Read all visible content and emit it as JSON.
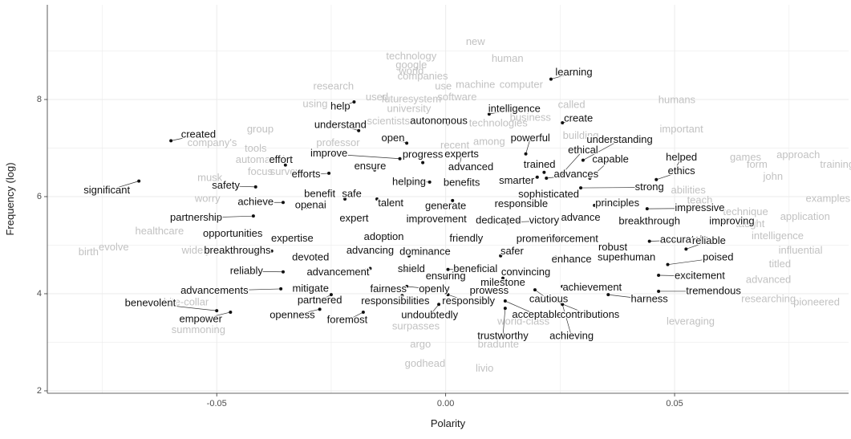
{
  "chart_data": {
    "type": "scatter",
    "xlabel": "Polarity",
    "ylabel": "Frequency (log)",
    "xlim": [
      -0.087,
      0.088
    ],
    "ylim": [
      1.95,
      9.95
    ],
    "x_ticks": [
      -0.05,
      0.0,
      0.05
    ],
    "x_tick_labels": [
      "-0.05",
      "0.00",
      "0.05"
    ],
    "y_ticks": [
      2,
      4,
      6,
      8
    ],
    "y_tick_labels": [
      "2",
      "4",
      "6",
      "8"
    ],
    "grid": true,
    "background": "#ffffff",
    "grid_color": "#ebebeb",
    "label_color": "#111111",
    "faded_label_color": "#c2c2c2",
    "point_color": "#111111",
    "highlighted_words": [
      {
        "word": "learning",
        "x": 0.023,
        "y": 8.42,
        "lx": 0.028,
        "ly": 8.55
      },
      {
        "word": "help",
        "x": -0.02,
        "y": 7.95,
        "lx": -0.023,
        "ly": 7.85
      },
      {
        "word": "intelligence",
        "x": 0.0095,
        "y": 7.7,
        "lx": 0.015,
        "ly": 7.8
      },
      {
        "word": "autonomous",
        "x": 0.0005,
        "y": 7.5,
        "lx": -0.0015,
        "ly": 7.55
      },
      {
        "word": "create",
        "x": 0.0255,
        "y": 7.52,
        "lx": 0.029,
        "ly": 7.6
      },
      {
        "word": "understand",
        "x": -0.019,
        "y": 7.36,
        "lx": -0.023,
        "ly": 7.47
      },
      {
        "word": "created",
        "x": -0.06,
        "y": 7.15,
        "lx": -0.054,
        "ly": 7.27
      },
      {
        "word": "open",
        "x": -0.0085,
        "y": 7.1,
        "lx": -0.0115,
        "ly": 7.2
      },
      {
        "word": "powerful",
        "x": 0.0175,
        "y": 6.88,
        "lx": 0.0185,
        "ly": 7.2
      },
      {
        "word": "understanding",
        "x": 0.03,
        "y": 6.75,
        "lx": 0.038,
        "ly": 7.16
      },
      {
        "word": "improve",
        "x": -0.01,
        "y": 6.78,
        "lx": -0.0255,
        "ly": 6.88
      },
      {
        "word": "progress",
        "x": -0.005,
        "y": 6.7,
        "lx": -0.005,
        "ly": 6.86
      },
      {
        "word": "experts",
        "x": 0.003,
        "y": 6.62,
        "lx": 0.0035,
        "ly": 6.87
      },
      {
        "word": "ethical",
        "x": 0.0255,
        "y": 6.48,
        "lx": 0.03,
        "ly": 6.95
      },
      {
        "word": "helped",
        "x": 0.05,
        "y": 6.55,
        "lx": 0.0515,
        "ly": 6.8
      },
      {
        "word": "effort",
        "x": -0.035,
        "y": 6.65,
        "lx": -0.036,
        "ly": 6.75
      },
      {
        "word": "capable",
        "x": 0.0315,
        "y": 6.38,
        "lx": 0.036,
        "ly": 6.76
      },
      {
        "word": "advanced",
        "x": 0.005,
        "y": 6.6,
        "lx": 0.0055,
        "ly": 6.6
      },
      {
        "word": "trained",
        "x": 0.0215,
        "y": 6.5,
        "lx": 0.0205,
        "ly": 6.65
      },
      {
        "word": "ensure",
        "x": -0.0155,
        "y": 6.55,
        "lx": -0.0165,
        "ly": 6.62
      },
      {
        "word": "efforts",
        "x": -0.0255,
        "y": 6.48,
        "lx": -0.0305,
        "ly": 6.45
      },
      {
        "word": "advances",
        "x": 0.022,
        "y": 6.38,
        "lx": 0.0285,
        "ly": 6.45
      },
      {
        "word": "ethics",
        "x": 0.046,
        "y": 6.35,
        "lx": 0.0515,
        "ly": 6.52
      },
      {
        "word": "helping",
        "x": -0.0035,
        "y": 6.3,
        "lx": -0.008,
        "ly": 6.3
      },
      {
        "word": "benefits",
        "x": 0.0045,
        "y": 6.3,
        "lx": 0.0035,
        "ly": 6.28
      },
      {
        "word": "smarter",
        "x": 0.02,
        "y": 6.4,
        "lx": 0.0155,
        "ly": 6.32
      },
      {
        "word": "safety",
        "x": -0.0415,
        "y": 6.2,
        "lx": -0.048,
        "ly": 6.22
      },
      {
        "word": "significant",
        "x": -0.067,
        "y": 6.32,
        "lx": -0.074,
        "ly": 6.12
      },
      {
        "word": "strong",
        "x": 0.0295,
        "y": 6.18,
        "lx": 0.0445,
        "ly": 6.19
      },
      {
        "word": "benefit",
        "x": -0.0255,
        "y": 6.05,
        "lx": -0.0275,
        "ly": 6.05
      },
      {
        "word": "safe",
        "x": -0.022,
        "y": 5.95,
        "lx": -0.0205,
        "ly": 6.05
      },
      {
        "word": "sophisticated",
        "x": 0.0235,
        "y": 6.05,
        "lx": 0.0225,
        "ly": 6.04
      },
      {
        "word": "achieve",
        "x": -0.0355,
        "y": 5.88,
        "lx": -0.0415,
        "ly": 5.88
      },
      {
        "word": "openai",
        "x": -0.0305,
        "y": 5.78,
        "lx": -0.0295,
        "ly": 5.82
      },
      {
        "word": "talent",
        "x": -0.015,
        "y": 5.95,
        "lx": -0.012,
        "ly": 5.86
      },
      {
        "word": "generate",
        "x": 0.0015,
        "y": 5.92,
        "lx": 0.0,
        "ly": 5.8
      },
      {
        "word": "responsible",
        "x": 0.011,
        "y": 5.88,
        "lx": 0.0165,
        "ly": 5.84
      },
      {
        "word": "principles",
        "x": 0.0325,
        "y": 5.82,
        "lx": 0.0375,
        "ly": 5.86
      },
      {
        "word": "impressive",
        "x": 0.044,
        "y": 5.75,
        "lx": 0.0555,
        "ly": 5.76
      },
      {
        "word": "partnership",
        "x": -0.042,
        "y": 5.6,
        "lx": -0.0545,
        "ly": 5.56
      },
      {
        "word": "expert",
        "x": -0.022,
        "y": 5.55,
        "lx": -0.02,
        "ly": 5.54
      },
      {
        "word": "improvement",
        "x": 0.002,
        "y": 5.5,
        "lx": -0.002,
        "ly": 5.53
      },
      {
        "word": "dedicated",
        "x": 0.0135,
        "y": 5.45,
        "lx": 0.0115,
        "ly": 5.5
      },
      {
        "word": "victory",
        "x": 0.016,
        "y": 5.48,
        "lx": 0.0215,
        "ly": 5.5
      },
      {
        "word": "advance",
        "x": 0.028,
        "y": 5.55,
        "lx": 0.0295,
        "ly": 5.56
      },
      {
        "word": "breakthrough",
        "x": 0.0425,
        "y": 5.45,
        "lx": 0.0445,
        "ly": 5.49
      },
      {
        "word": "improving",
        "x": 0.058,
        "y": 5.5,
        "lx": 0.0625,
        "ly": 5.49
      },
      {
        "word": "opportunities",
        "x": -0.042,
        "y": 5.2,
        "lx": -0.0465,
        "ly": 5.23
      },
      {
        "word": "expertise",
        "x": -0.0295,
        "y": 5.15,
        "lx": -0.0335,
        "ly": 5.13
      },
      {
        "word": "adoption",
        "x": -0.0135,
        "y": 5.2,
        "lx": -0.0135,
        "ly": 5.16
      },
      {
        "word": "friendly",
        "x": 0.0035,
        "y": 5.12,
        "lx": 0.0045,
        "ly": 5.13
      },
      {
        "word": "promotion",
        "x": 0.0165,
        "y": 5.15,
        "lx": 0.0205,
        "ly": 5.12
      },
      {
        "word": "enforcement",
        "x": 0.0255,
        "y": 5.12,
        "lx": 0.027,
        "ly": 5.12
      },
      {
        "word": "accurately",
        "x": 0.0445,
        "y": 5.08,
        "lx": 0.052,
        "ly": 5.11
      },
      {
        "word": "reliable",
        "x": 0.0525,
        "y": 4.92,
        "lx": 0.0575,
        "ly": 5.08
      },
      {
        "word": "robust",
        "x": 0.0355,
        "y": 4.98,
        "lx": 0.0365,
        "ly": 4.95
      },
      {
        "word": "breakthroughs",
        "x": -0.038,
        "y": 4.88,
        "lx": -0.0455,
        "ly": 4.88
      },
      {
        "word": "advancing",
        "x": -0.015,
        "y": 4.85,
        "lx": -0.0165,
        "ly": 4.88
      },
      {
        "word": "dominance",
        "x": -0.008,
        "y": 4.78,
        "lx": -0.0045,
        "ly": 4.86
      },
      {
        "word": "safer",
        "x": 0.012,
        "y": 4.78,
        "lx": 0.0145,
        "ly": 4.87
      },
      {
        "word": "devoted",
        "x": -0.032,
        "y": 4.75,
        "lx": -0.0295,
        "ly": 4.74
      },
      {
        "word": "superhuman",
        "x": 0.0385,
        "y": 4.72,
        "lx": 0.0395,
        "ly": 4.74
      },
      {
        "word": "poised",
        "x": 0.0485,
        "y": 4.6,
        "lx": 0.0595,
        "ly": 4.74
      },
      {
        "word": "enhance",
        "x": 0.024,
        "y": 4.75,
        "lx": 0.0275,
        "ly": 4.7
      },
      {
        "word": "reliably",
        "x": -0.0355,
        "y": 4.45,
        "lx": -0.0435,
        "ly": 4.46
      },
      {
        "word": "advancement",
        "x": -0.0165,
        "y": 4.52,
        "lx": -0.0235,
        "ly": 4.44
      },
      {
        "word": "shield",
        "x": -0.0085,
        "y": 4.48,
        "lx": -0.0075,
        "ly": 4.5
      },
      {
        "word": "beneficial",
        "x": 0.0005,
        "y": 4.5,
        "lx": 0.0065,
        "ly": 4.5
      },
      {
        "word": "convincing",
        "x": 0.0165,
        "y": 4.42,
        "lx": 0.0175,
        "ly": 4.44
      },
      {
        "word": "excitement",
        "x": 0.0465,
        "y": 4.38,
        "lx": 0.0555,
        "ly": 4.36
      },
      {
        "word": "ensuring",
        "x": 0.0,
        "y": 4.35,
        "lx": 0.0,
        "ly": 4.35
      },
      {
        "word": "milestone",
        "x": 0.0125,
        "y": 4.32,
        "lx": 0.0125,
        "ly": 4.22
      },
      {
        "word": "advancements",
        "x": -0.036,
        "y": 4.1,
        "lx": -0.0505,
        "ly": 4.06
      },
      {
        "word": "mitigate",
        "x": -0.026,
        "y": 4.12,
        "lx": -0.0295,
        "ly": 4.1
      },
      {
        "word": "fairness",
        "x": -0.0155,
        "y": 4.05,
        "lx": -0.0125,
        "ly": 4.09
      },
      {
        "word": "openly",
        "x": -0.0085,
        "y": 4.15,
        "lx": -0.0025,
        "ly": 4.09
      },
      {
        "word": "prowess",
        "x": 0.01,
        "y": 4.05,
        "lx": 0.0095,
        "ly": 4.06
      },
      {
        "word": "achievement",
        "x": 0.0255,
        "y": 4.15,
        "lx": 0.032,
        "ly": 4.12
      },
      {
        "word": "tremendous",
        "x": 0.0465,
        "y": 4.05,
        "lx": 0.0585,
        "ly": 4.05
      },
      {
        "word": "cautious",
        "x": 0.0195,
        "y": 4.08,
        "lx": 0.0225,
        "ly": 3.88
      },
      {
        "word": "harness",
        "x": 0.0355,
        "y": 3.98,
        "lx": 0.0445,
        "ly": 3.88
      },
      {
        "word": "benevolent",
        "x": -0.05,
        "y": 3.65,
        "lx": -0.0645,
        "ly": 3.8
      },
      {
        "word": "partnered",
        "x": -0.025,
        "y": 3.98,
        "lx": -0.0275,
        "ly": 3.86
      },
      {
        "word": "responsibilities",
        "x": -0.0095,
        "y": 3.96,
        "lx": -0.011,
        "ly": 3.84
      },
      {
        "word": "responsibly",
        "x": 0.0005,
        "y": 3.98,
        "lx": 0.005,
        "ly": 3.84
      },
      {
        "word": "acceptable",
        "x": 0.013,
        "y": 3.85,
        "lx": 0.02,
        "ly": 3.56
      },
      {
        "word": "contributions",
        "x": 0.023,
        "y": 3.88,
        "lx": 0.0315,
        "ly": 3.56
      },
      {
        "word": "empower",
        "x": -0.047,
        "y": 3.62,
        "lx": -0.0535,
        "ly": 3.47
      },
      {
        "word": "openness",
        "x": -0.0275,
        "y": 3.68,
        "lx": -0.0335,
        "ly": 3.55
      },
      {
        "word": "foremost",
        "x": -0.018,
        "y": 3.62,
        "lx": -0.0215,
        "ly": 3.45
      },
      {
        "word": "undoubtedly",
        "x": -0.0015,
        "y": 3.78,
        "lx": -0.0035,
        "ly": 3.55
      },
      {
        "word": "trustworthy",
        "x": 0.013,
        "y": 3.7,
        "lx": 0.0125,
        "ly": 3.12
      },
      {
        "word": "achieving",
        "x": 0.0255,
        "y": 3.78,
        "lx": 0.0275,
        "ly": 3.12
      }
    ],
    "background_words": [
      {
        "word": "new",
        "x": 0.0065,
        "y": 9.18
      },
      {
        "word": "technology",
        "x": -0.0075,
        "y": 8.88
      },
      {
        "word": "google",
        "x": -0.0075,
        "y": 8.7
      },
      {
        "word": "human",
        "x": 0.0135,
        "y": 8.83
      },
      {
        "word": "world",
        "x": -0.0075,
        "y": 8.58
      },
      {
        "word": "companies",
        "x": -0.005,
        "y": 8.47
      },
      {
        "word": "machine",
        "x": 0.0065,
        "y": 8.3
      },
      {
        "word": "computer",
        "x": 0.0165,
        "y": 8.3
      },
      {
        "word": "research",
        "x": -0.0245,
        "y": 8.26
      },
      {
        "word": "use",
        "x": -0.0005,
        "y": 8.26
      },
      {
        "word": "used",
        "x": -0.015,
        "y": 8.04
      },
      {
        "word": "futuresystem",
        "x": -0.0075,
        "y": 8.0
      },
      {
        "word": "software",
        "x": 0.0025,
        "y": 8.04
      },
      {
        "word": "using",
        "x": -0.0285,
        "y": 7.9
      },
      {
        "word": "university",
        "x": -0.008,
        "y": 7.8
      },
      {
        "word": "called",
        "x": 0.0275,
        "y": 7.88
      },
      {
        "word": "humans",
        "x": 0.0505,
        "y": 7.98
      },
      {
        "word": "business",
        "x": 0.0185,
        "y": 7.62
      },
      {
        "word": "technologies",
        "x": 0.0115,
        "y": 7.5
      },
      {
        "word": "scientists",
        "x": -0.0125,
        "y": 7.54
      },
      {
        "word": "group",
        "x": -0.0405,
        "y": 7.38
      },
      {
        "word": "important",
        "x": 0.0515,
        "y": 7.38
      },
      {
        "word": "company's",
        "x": -0.051,
        "y": 7.1
      },
      {
        "word": "professor",
        "x": -0.0235,
        "y": 7.1
      },
      {
        "word": "recent",
        "x": 0.002,
        "y": 7.05
      },
      {
        "word": "among",
        "x": 0.0095,
        "y": 7.12
      },
      {
        "word": "building",
        "x": 0.0295,
        "y": 7.25
      },
      {
        "word": "tools",
        "x": -0.0415,
        "y": 6.98
      },
      {
        "word": "automated",
        "x": -0.0405,
        "y": 6.75
      },
      {
        "word": "focus",
        "x": -0.0405,
        "y": 6.5
      },
      {
        "word": "survey",
        "x": -0.035,
        "y": 6.5
      },
      {
        "word": "games",
        "x": 0.0655,
        "y": 6.8
      },
      {
        "word": "approach",
        "x": 0.077,
        "y": 6.85
      },
      {
        "word": "form",
        "x": 0.068,
        "y": 6.65
      },
      {
        "word": "training",
        "x": 0.0855,
        "y": 6.65
      },
      {
        "word": "john",
        "x": 0.0715,
        "y": 6.4
      },
      {
        "word": "musk",
        "x": -0.0515,
        "y": 6.38
      },
      {
        "word": "worry",
        "x": -0.052,
        "y": 5.95
      },
      {
        "word": "abilities",
        "x": 0.053,
        "y": 6.12
      },
      {
        "word": "examples",
        "x": 0.0835,
        "y": 5.95
      },
      {
        "word": "teach",
        "x": 0.0555,
        "y": 5.92
      },
      {
        "word": "technique",
        "x": 0.0655,
        "y": 5.68
      },
      {
        "word": "application",
        "x": 0.0785,
        "y": 5.58
      },
      {
        "word": "taught",
        "x": 0.0665,
        "y": 5.43
      },
      {
        "word": "healthcare",
        "x": -0.0625,
        "y": 5.28
      },
      {
        "word": "intelligence",
        "x": 0.0725,
        "y": 5.18
      },
      {
        "word": "evolve",
        "x": -0.0725,
        "y": 4.95
      },
      {
        "word": "birth",
        "x": -0.078,
        "y": 4.85
      },
      {
        "word": "widely",
        "x": -0.0545,
        "y": 4.88
      },
      {
        "word": "influential",
        "x": 0.0775,
        "y": 4.88
      },
      {
        "word": "titled",
        "x": 0.073,
        "y": 4.6
      },
      {
        "word": "advanced",
        "x": 0.0705,
        "y": 4.28
      },
      {
        "word": "researching",
        "x": 0.0705,
        "y": 3.88
      },
      {
        "word": "pioneered",
        "x": 0.081,
        "y": 3.82
      },
      {
        "word": "white-collar",
        "x": -0.0575,
        "y": 3.82
      },
      {
        "word": "leveraging",
        "x": 0.0535,
        "y": 3.42
      },
      {
        "word": "summoning",
        "x": -0.054,
        "y": 3.25
      },
      {
        "word": "surpasses",
        "x": -0.0065,
        "y": 3.32
      },
      {
        "word": "world-class",
        "x": 0.017,
        "y": 3.42
      },
      {
        "word": "argo",
        "x": -0.0055,
        "y": 2.95
      },
      {
        "word": "bradunte",
        "x": 0.0115,
        "y": 2.95
      },
      {
        "word": "godhead",
        "x": -0.0045,
        "y": 2.55
      },
      {
        "word": "livio",
        "x": 0.0085,
        "y": 2.45
      }
    ]
  }
}
